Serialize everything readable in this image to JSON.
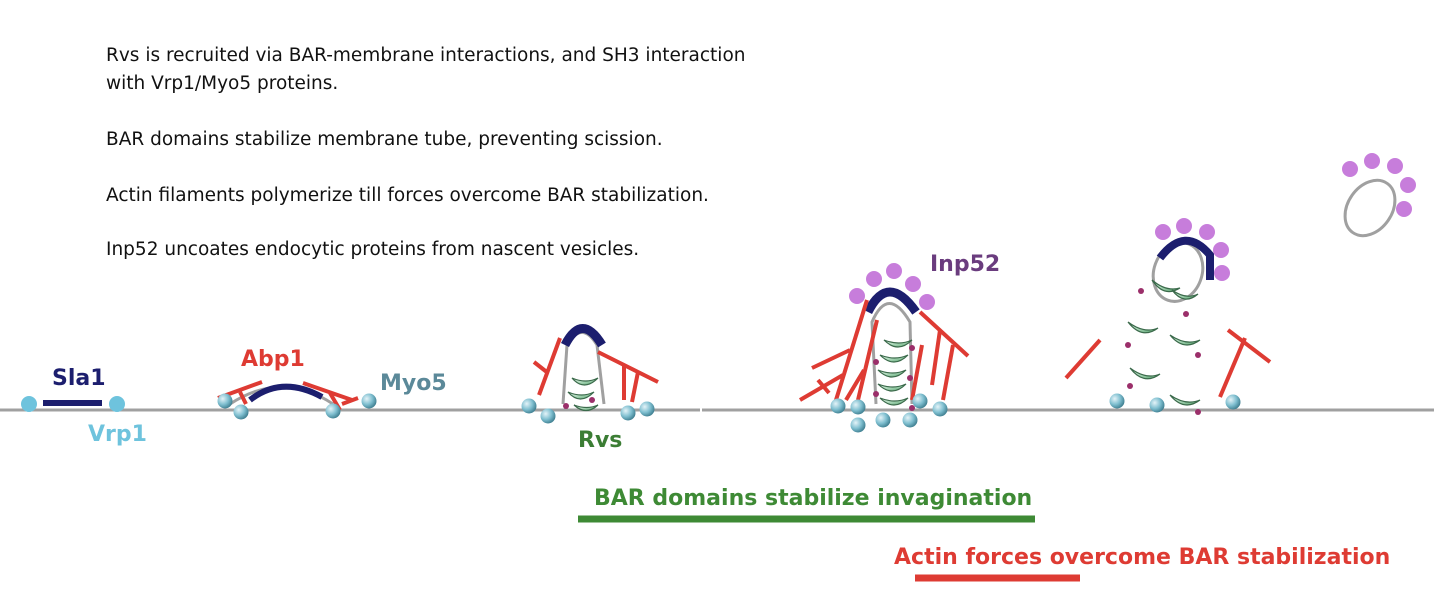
{
  "description": {
    "line1": "Rvs is recruited via BAR-membrane interactions, and SH3 interaction with Vrp1/Myo5 proteins.",
    "line2": "BAR domains stabilize membrane tube, preventing scission.",
    "line3": "Actin filaments polymerize till forces overcome BAR stabilization.",
    "line4": "Inp52 uncoates endocytic proteins from nascent vesicles."
  },
  "labels": {
    "sla1": "Sla1",
    "vrp1": "Vrp1",
    "abp1": "Abp1",
    "myo5": "Myo5",
    "rvs": "Rvs",
    "inp52": "Inp52"
  },
  "phases": {
    "bar": "BAR domains stabilize invagination",
    "actin": "Actin forces overcome BAR stabilization"
  },
  "colors": {
    "membrane": "#a0a0a0",
    "sla1": "#1c1e6e",
    "vrp1": "#6ec3dd",
    "abp1": "#de3b33",
    "myo5": "#5b8999",
    "rvs": "#3b7d34",
    "rvs_fill": "#b2dcc0",
    "inp52": "#c77ddb",
    "inp52_text": "#6a3c7e",
    "bar_phase": "#3e8a35",
    "actin_phase": "#de3b33"
  }
}
